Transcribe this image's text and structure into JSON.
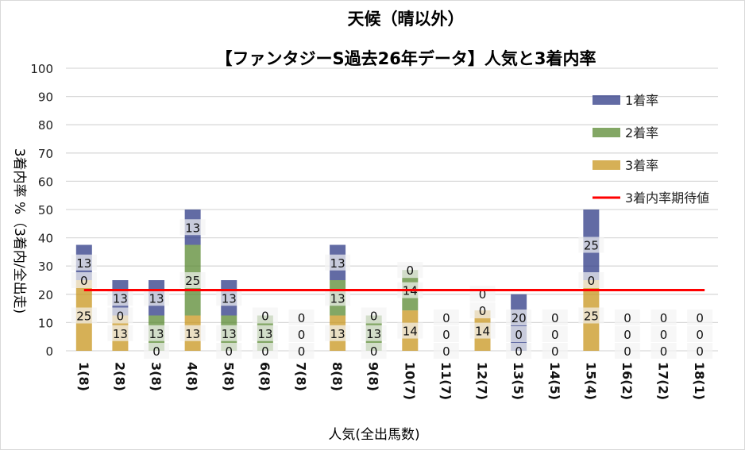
{
  "chart_data": {
    "type": "bar",
    "stacked": true,
    "title": "天候（晴以外）",
    "subtitle": "【ファンタジーS過去26年データ】人気と3着内率",
    "xlabel": "人気(全出馬数)",
    "ylabel": "3着内率 %（3着内/全出走)",
    "ylim": [
      0,
      100
    ],
    "yticks": [
      0,
      10,
      20,
      30,
      40,
      50,
      60,
      70,
      80,
      90,
      100
    ],
    "grid": true,
    "legend_position": "right",
    "categories": [
      "1(8)",
      "2(8)",
      "3(8)",
      "4(8)",
      "5(8)",
      "6(8)",
      "7(8)",
      "8(8)",
      "9(8)",
      "10(7)",
      "11(7)",
      "12(7)",
      "13(5)",
      "14(5)",
      "15(4)",
      "16(2)",
      "17(2)",
      "18(1)"
    ],
    "series": [
      {
        "name": "3着率",
        "color": "#c8961e",
        "values": [
          25,
          12.5,
          0,
          12.5,
          0,
          0,
          0,
          12.5,
          0,
          14.3,
          0,
          14.3,
          0,
          0,
          25,
          0,
          0,
          0
        ],
        "labels": [
          "25",
          "13",
          "0",
          "13",
          "0",
          "0",
          "0",
          "13",
          "0",
          "14",
          "0",
          "14",
          "0",
          "0",
          "25",
          "0",
          "0",
          "0"
        ]
      },
      {
        "name": "2着率",
        "color": "#5a8a32",
        "values": [
          0,
          0,
          12.5,
          25,
          12.5,
          12.5,
          0,
          12.5,
          12.5,
          14.3,
          0,
          0,
          0,
          0,
          0,
          0,
          0,
          0
        ],
        "labels": [
          "0",
          "0",
          "13",
          "25",
          "13",
          "13",
          "0",
          "13",
          "13",
          "14",
          "0",
          "0",
          "0",
          "0",
          "0",
          "0",
          "0",
          "0"
        ]
      },
      {
        "name": "1着率",
        "color": "#2e3a86",
        "values": [
          12.5,
          12.5,
          12.5,
          12.5,
          12.5,
          0,
          0,
          12.5,
          0,
          0,
          0,
          0,
          20,
          0,
          25,
          0,
          0,
          0
        ],
        "labels": [
          "13",
          "13",
          "13",
          "13",
          "13",
          "0",
          "0",
          "13",
          "0",
          "0",
          "0",
          "0",
          "20",
          "0",
          "25",
          "0",
          "0",
          "0"
        ]
      }
    ],
    "reference_line": {
      "name": "3着内率期待値",
      "value": 21.5,
      "color": "#ff0000"
    }
  }
}
